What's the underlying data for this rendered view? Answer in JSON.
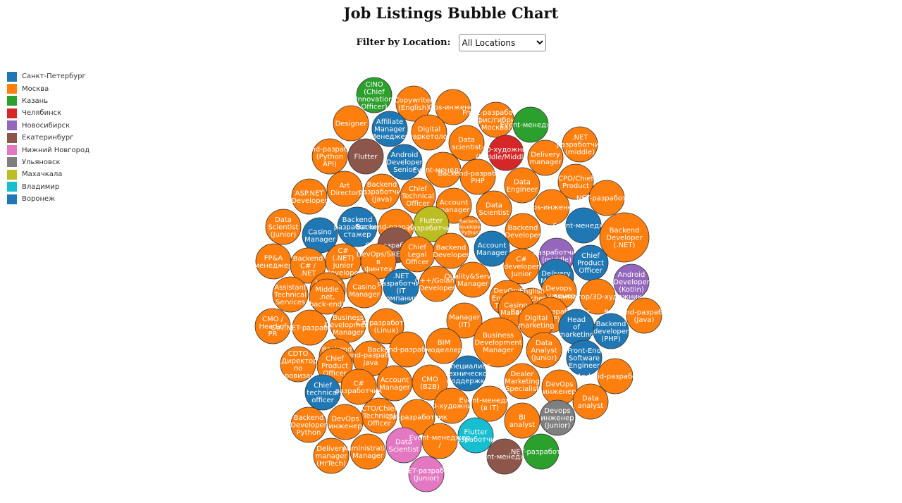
{
  "title": "Job Listings Bubble Chart",
  "filter": {
    "label": "Filter by Location:",
    "selected": "All Locations"
  },
  "legend": [
    {
      "name": "Санкт-Петербург",
      "color": "#1f77b4"
    },
    {
      "name": "Москва",
      "color": "#ff7f0e"
    },
    {
      "name": "Казань",
      "color": "#2ca02c"
    },
    {
      "name": "Челябинск",
      "color": "#d62728"
    },
    {
      "name": "Новосибирск",
      "color": "#9467bd"
    },
    {
      "name": "Екатеринбург",
      "color": "#8c564b"
    },
    {
      "name": "Нижний Новгород",
      "color": "#e377c2"
    },
    {
      "name": "Ульяновск",
      "color": "#7f7f7f"
    },
    {
      "name": "Махачкала",
      "color": "#bcbd22"
    },
    {
      "name": "Владимир",
      "color": "#17becf"
    },
    {
      "name": "Воронеж",
      "color": "#1f77b4"
    }
  ],
  "chart_data": {
    "type": "bubble",
    "title": "Job Listings Bubble Chart",
    "xlabel": "",
    "ylabel": "",
    "legend_placement": "left",
    "series": [
      {
        "name": "Санкт-Петербург"
      },
      {
        "name": "Москва"
      },
      {
        "name": "Казань"
      },
      {
        "name": "Челябинск"
      },
      {
        "name": "Новосибирск"
      },
      {
        "name": "Екатеринбург"
      },
      {
        "name": "Нижний Новгород"
      },
      {
        "name": "Ульяновск"
      },
      {
        "name": "Махачкала"
      },
      {
        "name": "Владимир"
      },
      {
        "name": "Воронеж"
      }
    ],
    "bubbles": [
      {
        "label": [
          "CINO",
          "(Chief",
          "Innovation",
          "Officer)"
        ],
        "location": "Казань"
      },
      {
        "label": [
          "Copywriter",
          "(English)"
        ],
        "location": "Москва"
      },
      {
        "label": [
          "Ops-инженер"
        ],
        "location": "Москва"
      },
      {
        "label": [
          "Designer"
        ],
        "location": "Москва"
      },
      {
        "label": [
          "Affiliate",
          "Manager",
          "(Менеджер)"
        ],
        "location": "Санкт-Петербург"
      },
      {
        "label": [
          "Digital",
          "маркетолог"
        ],
        "location": "Москва"
      },
      {
        "label": [
          "Front-разработчик",
          "(офис/гибрид,",
          "Москва)"
        ],
        "location": "Москва"
      },
      {
        "label": [
          "Event-менеджер"
        ],
        "location": "Казань"
      },
      {
        "label": [
          "Backend-разработчик",
          "(Python",
          "API)"
        ],
        "location": "Москва"
      },
      {
        "label": [
          "Flutter"
        ],
        "location": "Екатеринбург"
      },
      {
        "label": [
          "Android",
          "Developer",
          "Senior"
        ],
        "location": "Санкт-Петербург"
      },
      {
        "label": [
          "Data",
          "scientist"
        ],
        "location": "Москва"
      },
      {
        "label": [
          "3D-художник",
          "(Middle/Middle+)"
        ],
        "location": "Челябинск"
      },
      {
        "label": [
          "Delivery",
          "manager"
        ],
        "location": "Москва"
      },
      {
        "label": [
          ".NET",
          "разработчик",
          "(middle)"
        ],
        "location": "Москва"
      },
      {
        "label": [
          "Event-менеджер"
        ],
        "location": "Москва"
      },
      {
        "label": [
          "Backend-разработчик",
          "PHP"
        ],
        "location": "Москва"
      },
      {
        "label": [
          "Data",
          "Engineer"
        ],
        "location": "Москва"
      },
      {
        "label": [
          "CPO/Chief",
          "Product"
        ],
        "location": "Москва"
      },
      {
        "label": [
          ".NET-разработчик"
        ],
        "location": "Москва"
      },
      {
        "label": [
          "ASP.NET",
          "Developer"
        ],
        "location": "Москва"
      },
      {
        "label": [
          "Art",
          "Director"
        ],
        "location": "Москва"
      },
      {
        "label": [
          "Backend",
          "разработчик",
          "(Java)"
        ],
        "location": "Москва"
      },
      {
        "label": [
          "Chief",
          "Technical",
          "Officer"
        ],
        "location": "Москва"
      },
      {
        "label": [
          "Account",
          "manager"
        ],
        "location": "Москва"
      },
      {
        "label": [
          "Data",
          "Scientist"
        ],
        "location": "Москва"
      },
      {
        "label": [
          "Ops-инженер"
        ],
        "location": "Москва"
      },
      {
        "label": [
          "Data",
          "Scientist",
          "(Junior)"
        ],
        "location": "Москва"
      },
      {
        "label": [
          "Casino",
          "Manager"
        ],
        "location": "Санкт-Петербург"
      },
      {
        "label": [
          "Backend",
          "разработчик",
          "стажер"
        ],
        "location": "Санкт-Петербург"
      },
      {
        "label": [
          "Backend-разработчик"
        ],
        "location": "Москва"
      },
      {
        "label": [
          "Flutter",
          "разработчик"
        ],
        "location": "Махачкала"
      },
      {
        "label": [
          "Backend",
          "developer",
          "(Python)"
        ],
        "location": "Москва"
      },
      {
        "label": [
          "Backend",
          "Developer"
        ],
        "location": "Москва"
      },
      {
        "label": [
          "Event-менеджер"
        ],
        "location": "Санкт-Петербург"
      },
      {
        "label": [
          "Backend",
          "Developer",
          "(.NET)"
        ],
        "location": "Москва"
      },
      {
        "label": [
          "C#-разработчик"
        ],
        "location": "Екатеринбург"
      },
      {
        "label": [
          "Chief",
          "Legal",
          "Officer"
        ],
        "location": "Москва"
      },
      {
        "label": [
          "Backend",
          "Developer"
        ],
        "location": "Москва"
      },
      {
        "label": [
          "Account",
          "Manager"
        ],
        "location": "Санкт-Петербург"
      },
      {
        "label": [
          "FP&A",
          "менеджер"
        ],
        "location": "Москва"
      },
      {
        "label": [
          "Backend",
          "C# /",
          ".NET"
        ],
        "location": "Москва"
      },
      {
        "label": [
          "C#",
          "(.NET)",
          "Junior",
          "Developer"
        ],
        "location": "Москва"
      },
      {
        "label": [
          "DevOps/SRE",
          "в",
          "финтех"
        ],
        "location": "Москва"
      },
      {
        "label": [
          "C#",
          "developer",
          "Junior"
        ],
        "location": "Москва"
      },
      {
        "label": [
          "Разработчик",
          "(middle)"
        ],
        "location": "Новосибирск"
      },
      {
        "label": [
          "Chief",
          "Product",
          "Officer"
        ],
        "location": "Санкт-Петербург"
      },
      {
        "label": [
          "Affiliate",
          "manager",
          "(Junior)"
        ],
        "location": "Москва"
      },
      {
        "label": [
          "Casino",
          "Manager"
        ],
        "location": "Москва"
      },
      {
        "label": [
          ".NET",
          "разработчик",
          "(IT",
          "компания)"
        ],
        "location": "Санкт-Петербург"
      },
      {
        "label": [
          "C++/Golang",
          "Developer"
        ],
        "location": "Москва"
      },
      {
        "label": [
          "Quality&Service",
          "Manager"
        ],
        "location": "Москва"
      },
      {
        "label": [
          "DevOps",
          "Engineer",
          "Trainee"
        ],
        "location": "Москва"
      },
      {
        "label": [
          "Delivery",
          "Manager"
        ],
        "location": "Санкт-Петербург"
      },
      {
        "label": [
          "Android",
          "Developer",
          "(Kotlin)"
        ],
        "location": "Новосибирск"
      },
      {
        "label": [
          "Assistant",
          "Technical",
          "Services"
        ],
        "location": "Москва"
      },
      {
        "label": [
          "Middle",
          ".net,",
          "back-end)"
        ],
        "location": "Москва"
      },
      {
        "label": [
          "Devops",
          "инженер"
        ],
        "location": "Москва"
      },
      {
        "label": [
          "Аниматор/3D-художник"
        ],
        "location": "Москва"
      },
      {
        "label": [
          "English",
          "Teacher",
          "in the",
          "International",
          "School"
        ],
        "location": "Москва"
      },
      {
        "label": [
          "CMO /",
          "Head of",
          "PR"
        ],
        "location": "Москва"
      },
      {
        "label": [
          "C#/.NET-разработчик"
        ],
        "location": "Москва"
      },
      {
        "label": [
          "Business",
          "Development",
          "Manager"
        ],
        "location": "Москва"
      },
      {
        "label": [
          "C#-разработчик",
          "(Linux)"
        ],
        "location": "Москва"
      },
      {
        "label": [
          "Manager",
          "(IT)"
        ],
        "location": "Москва"
      },
      {
        "label": [
          "Casino",
          "Manager"
        ],
        "location": "Москва"
      },
      {
        "label": [
          "Backend-разработчик",
          "(PHP)"
        ],
        "location": "Москва"
      },
      {
        "label": [
          "Backend-разработчик",
          "(Java)"
        ],
        "location": "Москва"
      },
      {
        "label": [
          "Digital",
          "marketing"
        ],
        "location": "Москва"
      },
      {
        "label": [
          "Head",
          "of",
          "marketing"
        ],
        "location": "Санкт-Петербург"
      },
      {
        "label": [
          "Backend",
          "developer",
          "(PHP)"
        ],
        "location": "Санкт-Петербург"
      },
      {
        "label": [
          "Backend",
          "PHP",
          "Developer"
        ],
        "location": "Москва"
      },
      {
        "label": [
          "Backend-разработчик",
          "Java"
        ],
        "location": "Москва"
      },
      {
        "label": [
          "Backend-разработчик"
        ],
        "location": "Москва"
      },
      {
        "label": [
          "BIM",
          "моделлер"
        ],
        "location": "Москва"
      },
      {
        "label": [
          "Business",
          "Development",
          "Manager"
        ],
        "location": "Москва"
      },
      {
        "label": [
          "Data",
          "Analyst",
          "(Junior)"
        ],
        "location": "Москва"
      },
      {
        "label": [
          "Front-End",
          "Software",
          "Engineer"
        ],
        "location": "Санкт-Петербург"
      },
      {
        "label": [
          "CDTO",
          "(Директор",
          "по",
          "цифровизации)"
        ],
        "location": "Москва"
      },
      {
        "label": [
          "Chief",
          "Product",
          "Officer"
        ],
        "location": "Москва"
      },
      {
        "label": [
          "Account",
          "Manager"
        ],
        "location": "Москва"
      },
      {
        "label": [
          "CMO",
          "(B2B)"
        ],
        "location": "Москва"
      },
      {
        "label": [
          "Специалист",
          "технической",
          "поддержки"
        ],
        "location": "Санкт-Петербург"
      },
      {
        "label": [
          "Dealer",
          "Marketing",
          "Specialist"
        ],
        "location": "Москва"
      },
      {
        "label": [
          "DevOps",
          "инженер"
        ],
        "location": "Москва"
      },
      {
        "label": [
          "Android-разработчик"
        ],
        "location": "Москва"
      },
      {
        "label": [
          "Chief",
          "technical",
          "officer"
        ],
        "location": "Санкт-Петербург"
      },
      {
        "label": [
          "C#",
          "разработчик"
        ],
        "location": "Москва"
      },
      {
        "label": [
          "CTO/Chief",
          "Technical",
          "Officer"
        ],
        "location": "Москва"
      },
      {
        "label": [
          "2D-художник"
        ],
        "location": "Москва"
      },
      {
        "label": [
          "Event-менеджер",
          "(в IT)"
        ],
        "location": "Москва"
      },
      {
        "label": [
          "Data",
          "analyst"
        ],
        "location": "Москва"
      },
      {
        "label": [
          "Backend",
          "Developer",
          "Python"
        ],
        "location": "Москва"
      },
      {
        "label": [
          "DevOps",
          "инженер"
        ],
        "location": "Москва"
      },
      {
        "label": [
          "C#-разработчик"
        ],
        "location": "Москва"
      },
      {
        "label": [
          "BI",
          "analyst"
        ],
        "location": "Москва"
      },
      {
        "label": [
          "Devops",
          "инженер",
          "(Junior)"
        ],
        "location": "Ульяновск"
      },
      {
        "label": [
          "Flutter",
          "разработчик"
        ],
        "location": "Владимир"
      },
      {
        "label": [
          "Delivery",
          "manager",
          "(HrTech)"
        ],
        "location": "Москва"
      },
      {
        "label": [
          "Administrative",
          "Manager"
        ],
        "location": "Москва"
      },
      {
        "label": [
          "Data",
          "Scientist"
        ],
        "location": "Нижний Новгород"
      },
      {
        "label": [
          "Event-менеджер",
          "/"
        ],
        "location": "Москва"
      },
      {
        "label": [
          "Event-менеджер"
        ],
        "location": "Екатеринбург"
      },
      {
        "label": [
          ".NET-разработчик"
        ],
        "location": "Казань"
      },
      {
        "label": [
          "C#/.NET-разработчик",
          "(Junior)"
        ],
        "location": "Нижний Новгород"
      }
    ]
  }
}
